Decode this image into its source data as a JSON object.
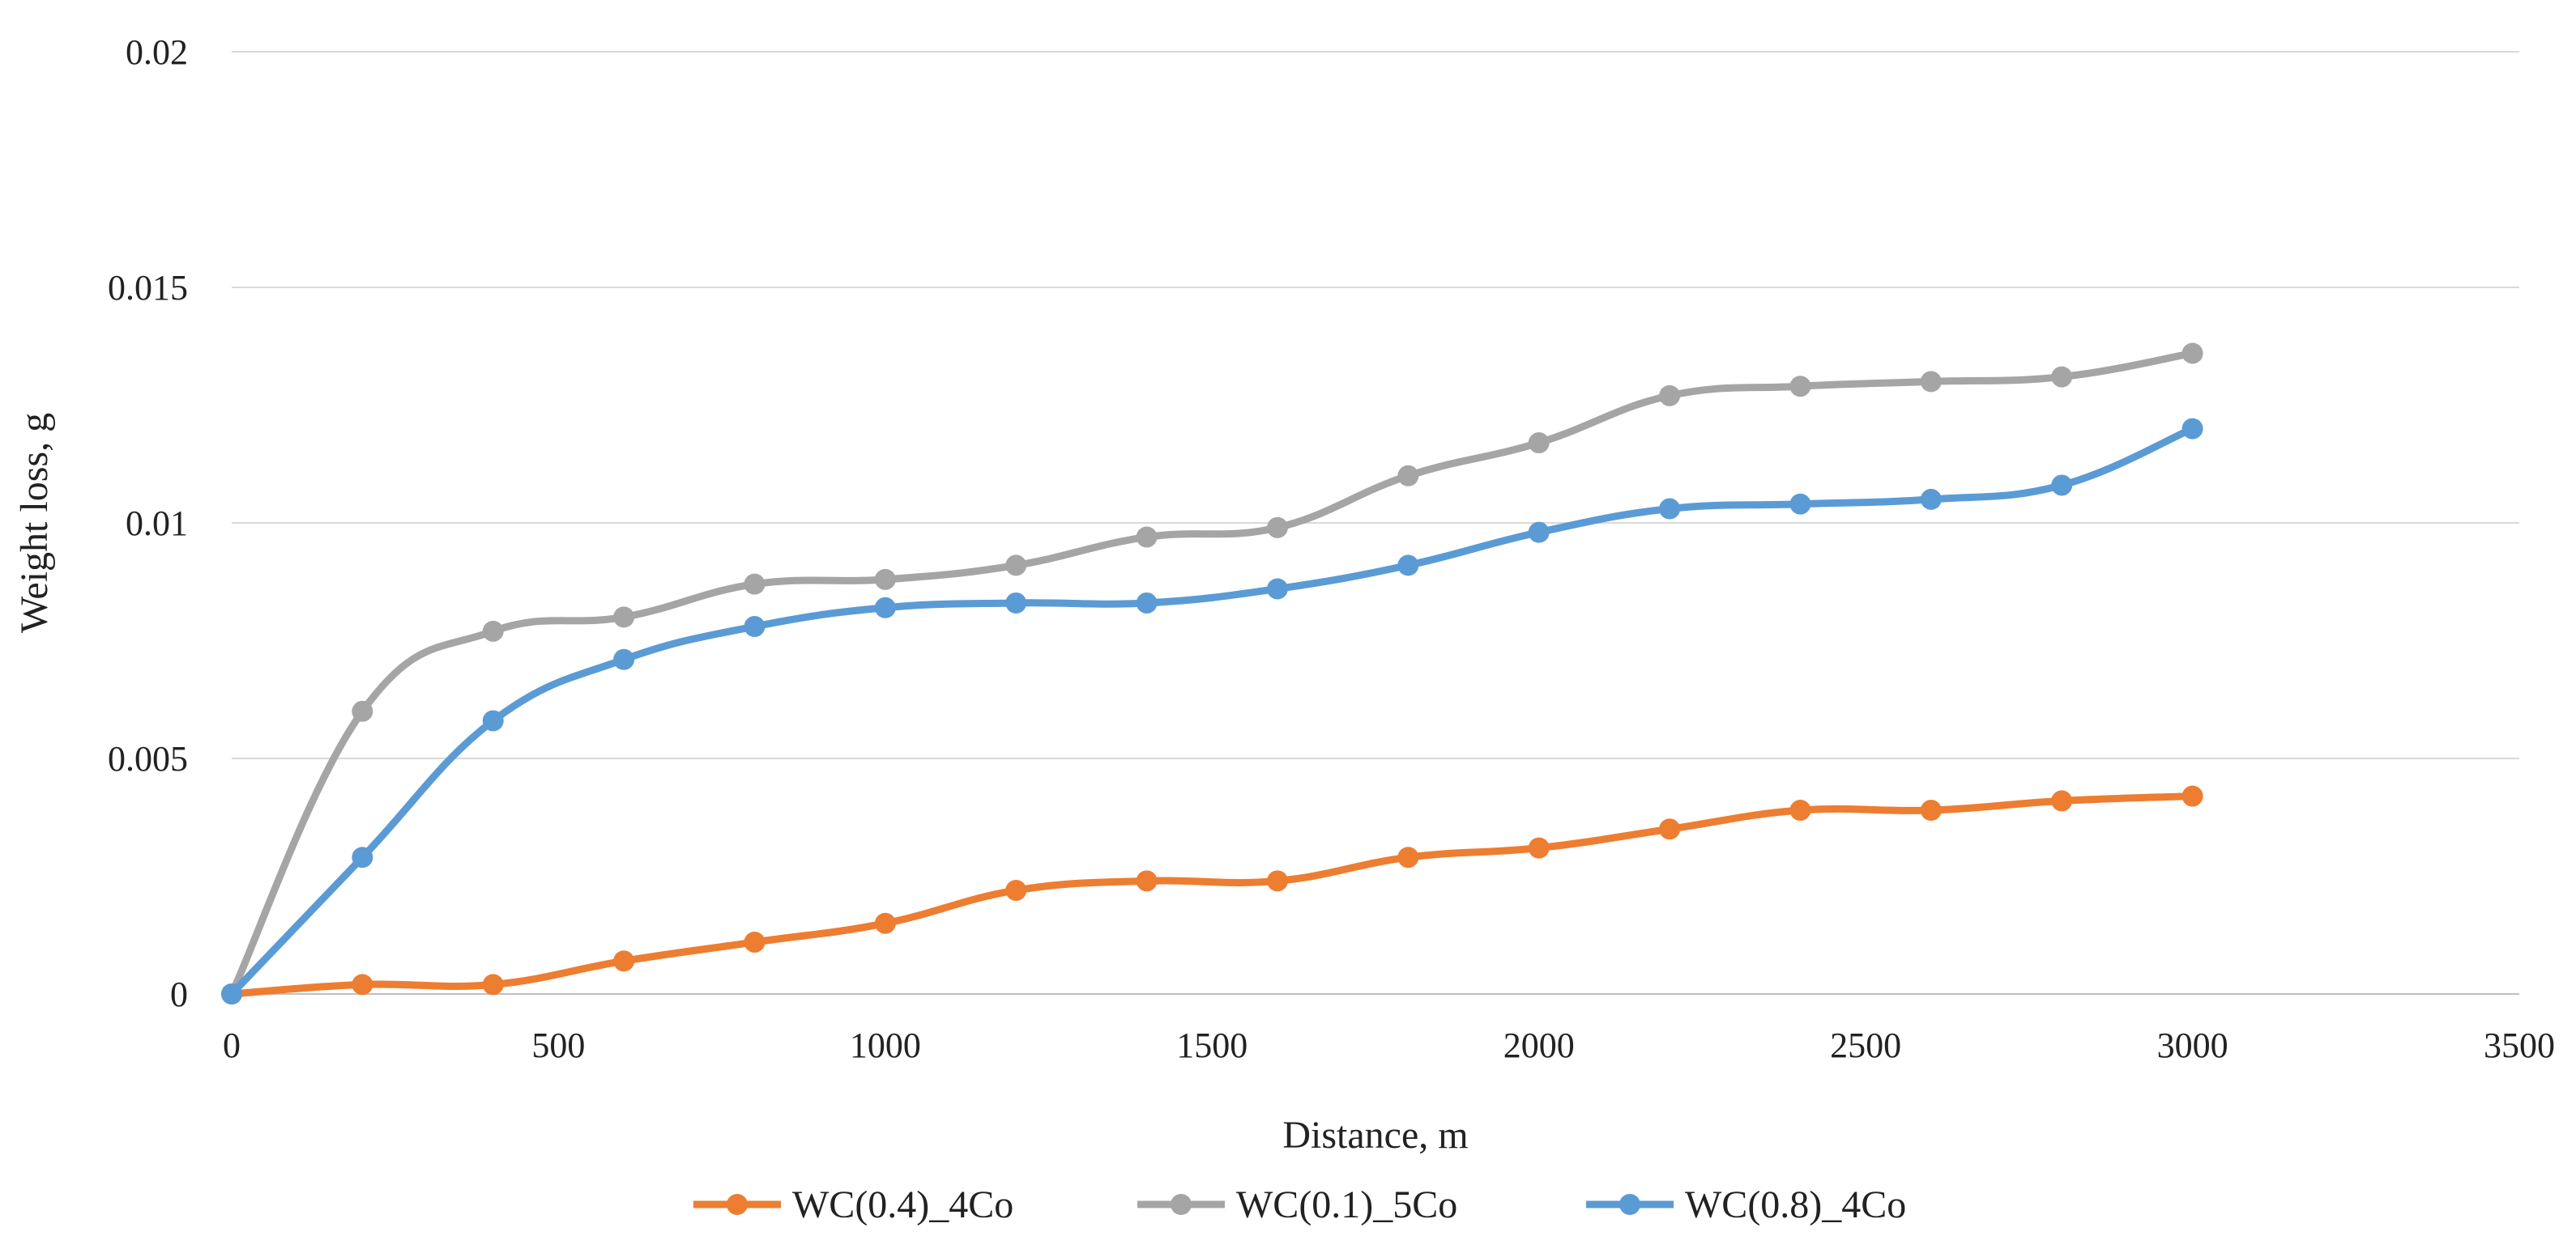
{
  "chart_data": {
    "type": "line",
    "title": "",
    "xlabel": "Distance, m",
    "ylabel": "Weight loss, g",
    "xlim": [
      0,
      3500
    ],
    "ylim": [
      0,
      0.02
    ],
    "x_ticks": [
      0,
      500,
      1000,
      1500,
      2000,
      2500,
      3000,
      3500
    ],
    "x_tick_labels": [
      "0",
      "500",
      "1000",
      "1500",
      "2000",
      "2500",
      "3000",
      "3500"
    ],
    "y_ticks": [
      0,
      0.005,
      0.01,
      0.015,
      0.02
    ],
    "y_tick_labels": [
      "0",
      "0.005",
      "0.01",
      "0.015",
      "0.02"
    ],
    "grid": "horizontal",
    "legend_position": "bottom",
    "x": [
      0,
      200,
      400,
      600,
      800,
      1000,
      1200,
      1400,
      1600,
      1800,
      2000,
      2200,
      2400,
      2600,
      2800,
      3000
    ],
    "series": [
      {
        "name": "WC(0.4)_4Co",
        "color": "#ED7D31",
        "values": [
          0,
          0.0002,
          0.0002,
          0.0007,
          0.0011,
          0.0015,
          0.0022,
          0.0024,
          0.0024,
          0.0029,
          0.0031,
          0.0035,
          0.0039,
          0.0039,
          0.0041,
          0.0042
        ]
      },
      {
        "name": "WC(0.1)_5Co",
        "color": "#A5A5A5",
        "values": [
          0,
          0.006,
          0.0077,
          0.008,
          0.0087,
          0.0088,
          0.0091,
          0.0097,
          0.0099,
          0.011,
          0.0117,
          0.0127,
          0.0129,
          0.013,
          0.0131,
          0.0136
        ]
      },
      {
        "name": "WC(0.8)_4Co",
        "color": "#5B9BD5",
        "values": [
          0,
          0.0029,
          0.0058,
          0.0071,
          0.0078,
          0.0082,
          0.0083,
          0.0083,
          0.0086,
          0.0091,
          0.0098,
          0.0103,
          0.0104,
          0.0105,
          0.0108,
          0.012
        ]
      }
    ]
  }
}
